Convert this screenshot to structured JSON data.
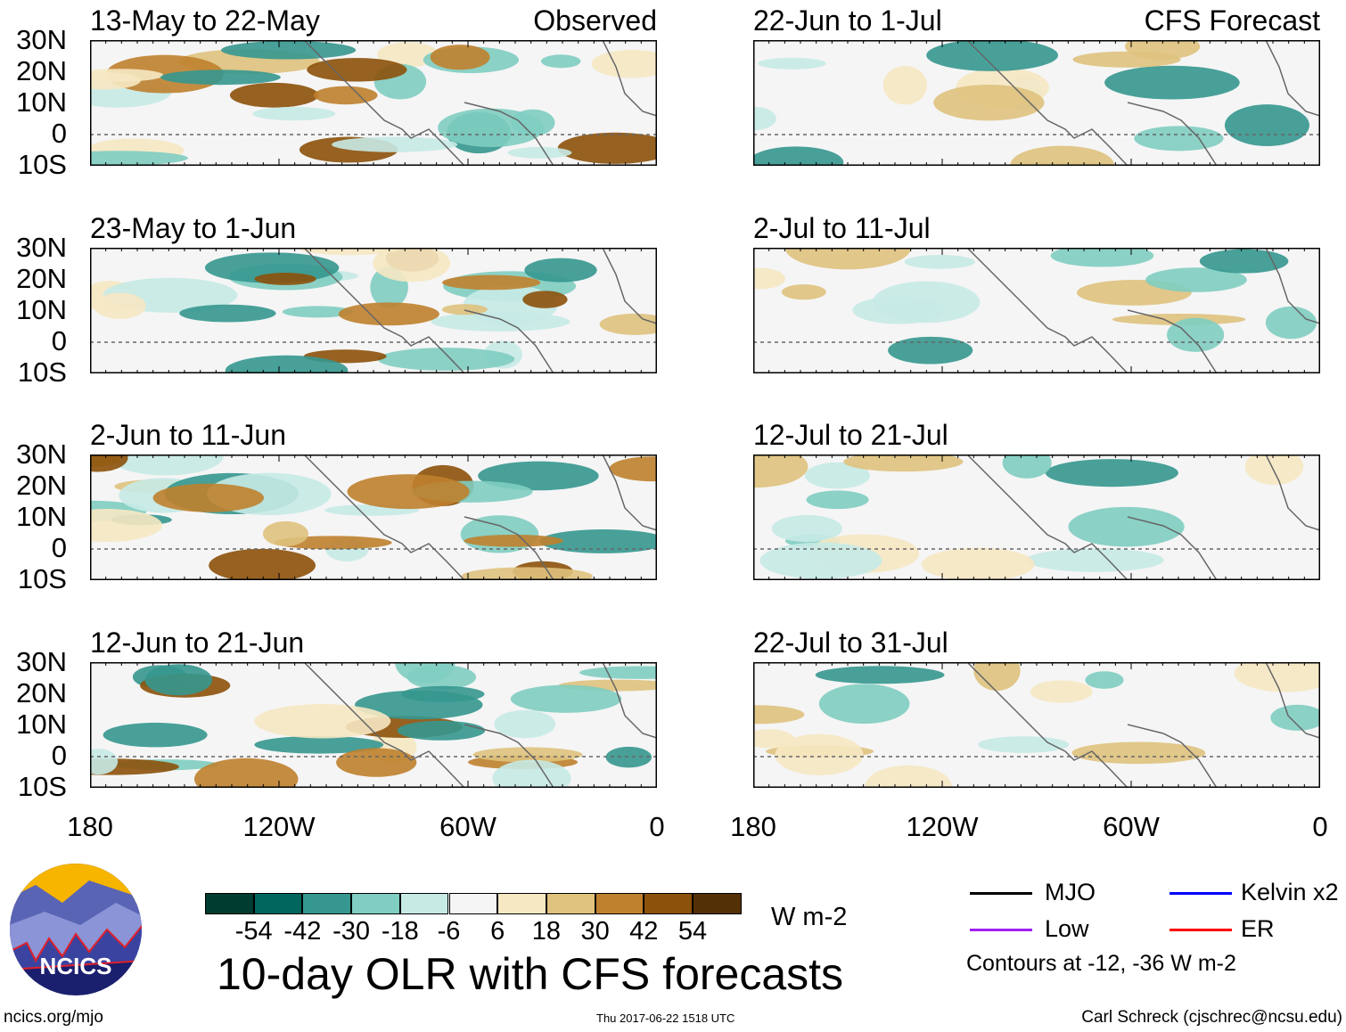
{
  "panels": [
    {
      "title": "13-May to 22-May",
      "tag": "Observed",
      "column": "left"
    },
    {
      "title": "22-Jun to 1-Jul",
      "tag": "CFS Forecast",
      "column": "right"
    },
    {
      "title": "23-May to 1-Jun",
      "column": "left"
    },
    {
      "title": "2-Jul to 11-Jul",
      "column": "right"
    },
    {
      "title": "2-Jun to 11-Jun",
      "column": "left"
    },
    {
      "title": "12-Jul to 21-Jul",
      "column": "right"
    },
    {
      "title": "12-Jun to 21-Jun",
      "column": "left"
    },
    {
      "title": "22-Jul to 31-Jul",
      "column": "right"
    }
  ],
  "lat_labels": [
    "30N",
    "20N",
    "10N",
    "0",
    "10S"
  ],
  "lon_labels": [
    "180",
    "120W",
    "60W",
    "0"
  ],
  "colorbar": {
    "colors": [
      "#003c30",
      "#01665e",
      "#35978f",
      "#80cdc1",
      "#c7eae5",
      "#f5f5f5",
      "#f6e8c3",
      "#dfc27d",
      "#bf812d",
      "#8c510a",
      "#543005"
    ],
    "labels": [
      "-54",
      "-42",
      "-30",
      "-18",
      "-6",
      "6",
      "18",
      "30",
      "42",
      "54"
    ],
    "units": "W m-2"
  },
  "legend": {
    "items": [
      {
        "label": "MJO",
        "color": "#000000"
      },
      {
        "label": "Kelvin x2",
        "color": "#0000ff"
      },
      {
        "label": "Low",
        "color": "#a020f0"
      },
      {
        "label": "ER",
        "color": "#ff0000"
      }
    ],
    "note": "Contours at -12, -36 W m-2"
  },
  "title": "10-day OLR with CFS forecasts",
  "logo_text": "NCICS",
  "footer": {
    "left": "ncics.org/mjo",
    "center": "Thu 2017-06-22 1518 UTC",
    "right": "Carl Schreck (cjschrec@ncsu.edu)"
  }
}
